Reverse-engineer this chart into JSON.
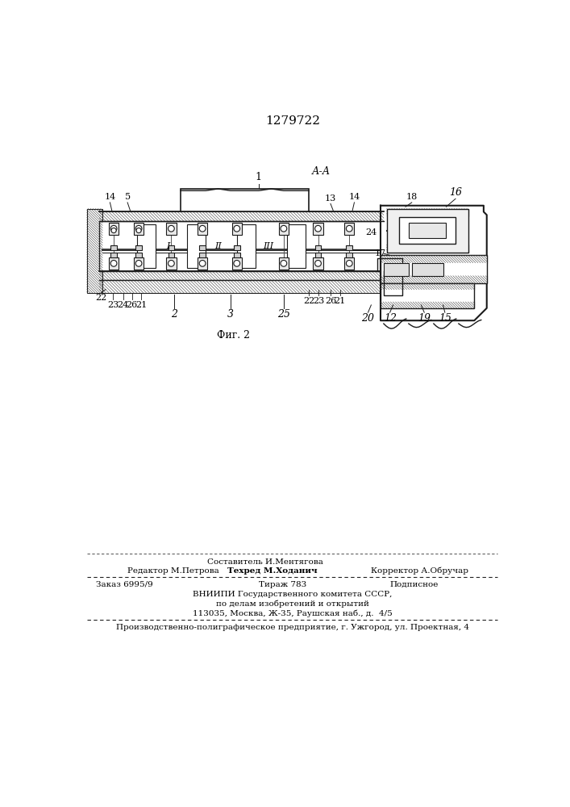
{
  "patent_number": "1279722",
  "fig_label": "Фиг. 2",
  "section_label": "А-А",
  "bg_color": "#ffffff",
  "text_color": "#000000",
  "footer": {
    "line1_center_top": "Составитель И.Ментягова",
    "line1_left": "Редактор М.Петрова",
    "line1_center": "Техред М.Ходанич",
    "line1_right": "Корректор А.Обручар",
    "line2_left": "Заказ 6995/9",
    "line2_center": "Тираж 783",
    "line2_right": "Подписное",
    "line3": "ВНИИПИ Государственного комитета СССР,",
    "line4": "по делам изобретений и открытий",
    "line5": "113035, Москва, Ж-35, Раушская наб., д.  4/5",
    "line6": "Производственно-полиграфическое предприятие, г. Ужгород, ул. Проектная, 4"
  }
}
